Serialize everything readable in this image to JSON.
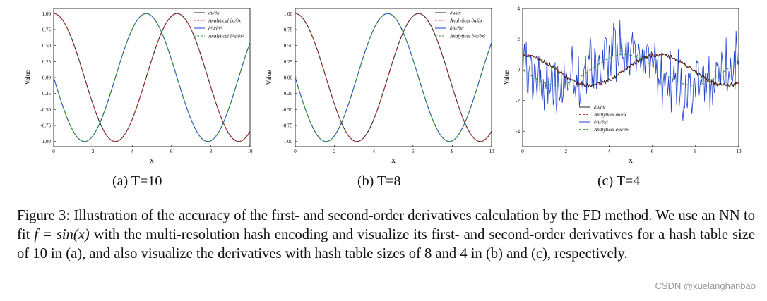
{
  "chart_data": [
    {
      "type": "line",
      "xlabel": "x",
      "ylabel": "Value",
      "xlim": [
        0,
        10
      ],
      "ylim": [
        -1.08,
        1.08
      ],
      "xticks": [
        0,
        2,
        4,
        6,
        8,
        10
      ],
      "yticks": [
        -1.0,
        -0.75,
        -0.5,
        -0.25,
        0.0,
        0.25,
        0.5,
        0.75,
        1.0
      ],
      "ytick_labels": [
        "-1.00",
        "-0.75",
        "-0.50",
        "-0.25",
        "0.00",
        "0.25",
        "0.50",
        "0.75",
        "1.00"
      ],
      "legend_position": "top-right",
      "noise": 0,
      "series": [
        {
          "name": "∂u/∂x",
          "color": "#222222",
          "dash": "",
          "func": "cos"
        },
        {
          "name": "Analytical ∂u/∂x",
          "color": "#c0392b",
          "dash": "4 3",
          "func": "cos"
        },
        {
          "name": "∂²u/∂x²",
          "color": "#2040d0",
          "dash": "",
          "func": "-sin"
        },
        {
          "name": "Analytical ∂²u/∂x²",
          "color": "#2e9a3a",
          "dash": "4 3",
          "func": "-sin"
        }
      ]
    },
    {
      "type": "line",
      "xlabel": "x",
      "ylabel": "Value",
      "xlim": [
        0,
        10
      ],
      "ylim": [
        -1.08,
        1.08
      ],
      "xticks": [
        0,
        2,
        4,
        6,
        8,
        10
      ],
      "yticks": [
        -1.0,
        -0.75,
        -0.5,
        -0.25,
        0.0,
        0.25,
        0.5,
        0.75,
        1.0
      ],
      "ytick_labels": [
        "-1.00",
        "-0.75",
        "-0.50",
        "-0.25",
        "0.00",
        "0.25",
        "0.50",
        "0.75",
        "1.00"
      ],
      "legend_position": "top-right",
      "noise": 0,
      "series": [
        {
          "name": "∂u/∂x",
          "color": "#222222",
          "dash": "",
          "func": "cos"
        },
        {
          "name": "Analytical ∂u/∂x",
          "color": "#c0392b",
          "dash": "4 3",
          "func": "cos"
        },
        {
          "name": "∂²u/∂x²",
          "color": "#2040d0",
          "dash": "",
          "func": "-sin"
        },
        {
          "name": "Analytical ∂²u/∂x²",
          "color": "#2e9a3a",
          "dash": "4 3",
          "func": "-sin"
        }
      ]
    },
    {
      "type": "line",
      "xlabel": "x",
      "ylabel": "Value",
      "xlim": [
        0,
        10
      ],
      "ylim": [
        -5,
        4
      ],
      "xticks": [
        0,
        2,
        4,
        6,
        8,
        10
      ],
      "yticks": [
        -4,
        -2,
        0,
        2,
        4
      ],
      "ytick_labels": [
        "-4",
        "-2",
        "0",
        "2",
        "4"
      ],
      "legend_position": "bottom-center",
      "noise": 1.6,
      "series": [
        {
          "name": "∂u/∂x",
          "color": "#222222",
          "dash": "",
          "func": "cos"
        },
        {
          "name": "Analytical ∂u/∂x",
          "color": "#c0392b",
          "dash": "4 3",
          "func": "cos"
        },
        {
          "name": "∂²u/∂x²",
          "color": "#2040d0",
          "dash": "",
          "func": "-sin"
        },
        {
          "name": "Analytical ∂²u/∂x²",
          "color": "#2e9a3a",
          "dash": "4 3",
          "func": "-sin"
        }
      ]
    }
  ],
  "subcaptions": [
    "(a) T=10",
    "(b) T=8",
    "(c) T=4"
  ],
  "caption": {
    "part1": "Figure 3: Illustration of the accuracy of the first- and second-order derivatives calculation by the FD method. We use an NN to fit ",
    "math": "f = sin(x)",
    "part2": " with the multi-resolution hash encoding and visualize its first- and second-order derivatives for a hash table size of 10 in (a), and also visualize the derivatives with hash table sizes of 8 and 4 in (b) and (c), respectively."
  },
  "watermark": "CSDN @xuelanghanbao"
}
